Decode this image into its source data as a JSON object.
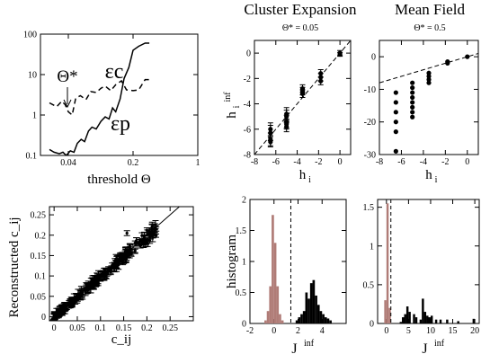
{
  "header": {
    "left_title": "Cluster Expansion",
    "left_sub": "Θ* = 0.05",
    "right_title": "Mean Field",
    "right_sub": "Θ* = 0.5"
  },
  "chart_data": [
    {
      "id": "errors_vs_threshold",
      "type": "line",
      "xlabel": "threshold Θ",
      "ylabel": "",
      "x_scale": "log",
      "y_scale": "log",
      "xlim": [
        0.02,
        1
      ],
      "ylim": [
        0.1,
        100
      ],
      "x_ticks": [
        0.04,
        0.2,
        1
      ],
      "x_tick_labels": [
        "0.04",
        "0.2",
        "1"
      ],
      "y_ticks": [
        0.1,
        1,
        10,
        100
      ],
      "y_tick_labels": [
        "0.1",
        "1",
        "10",
        "100"
      ],
      "annotations": [
        "Θ*",
        "εc",
        "εp"
      ],
      "series": [
        {
          "name": "εc",
          "style": "dashed",
          "x": [
            0.025,
            0.03,
            0.034,
            0.037,
            0.04,
            0.044,
            0.048,
            0.054,
            0.062,
            0.07,
            0.08,
            0.09,
            0.1,
            0.115,
            0.13,
            0.15,
            0.17,
            0.2,
            0.23,
            0.27,
            0.3
          ],
          "y": [
            2.0,
            1.6,
            2.2,
            1.8,
            1.2,
            1.0,
            2.6,
            3.0,
            2.4,
            3.8,
            3.6,
            4.6,
            5.2,
            4.0,
            5.6,
            7.0,
            4.2,
            4.0,
            4.2,
            7.5,
            7.5
          ]
        },
        {
          "name": "εp",
          "style": "solid",
          "x": [
            0.025,
            0.028,
            0.032,
            0.035,
            0.038,
            0.042,
            0.046,
            0.05,
            0.055,
            0.06,
            0.066,
            0.072,
            0.08,
            0.09,
            0.1,
            0.11,
            0.12,
            0.13,
            0.145,
            0.16,
            0.18,
            0.2,
            0.23,
            0.27,
            0.3
          ],
          "y": [
            0.14,
            0.12,
            0.11,
            0.12,
            0.1,
            0.13,
            0.12,
            0.2,
            0.25,
            0.22,
            0.4,
            0.5,
            0.45,
            0.7,
            0.9,
            0.8,
            1.5,
            1.2,
            2.5,
            8.0,
            15.0,
            40.0,
            50.0,
            60.0,
            60.0
          ]
        }
      ]
    },
    {
      "id": "reconstructed_correlations",
      "type": "scatter",
      "xlabel": "c_ij",
      "ylabel": "Reconstructed c_ij",
      "xlim": [
        -0.01,
        0.3
      ],
      "ylim": [
        -0.01,
        0.27
      ],
      "x_ticks": [
        0,
        0.05,
        0.1,
        0.15,
        0.2,
        0.25
      ],
      "x_tick_labels": [
        "0",
        "0.05",
        "0.1",
        "0.15",
        "0.2",
        "0.25"
      ],
      "y_ticks": [
        0,
        0.05,
        0.1,
        0.15,
        0.2,
        0.25
      ],
      "y_tick_labels": [
        "0",
        "0.05",
        "0.1",
        "0.15",
        "0.2",
        "0.25"
      ],
      "reference_line": "y = x",
      "cloud": {
        "x_range": [
          0.0,
          0.22
        ],
        "count": 260,
        "slope": 0.98,
        "spread": 0.012,
        "error_bar": 0.008
      },
      "extra_points": [
        {
          "x": 0.157,
          "y": 0.205,
          "err": 0.006
        },
        {
          "x": 0.2,
          "y": 0.212,
          "err": 0.006
        },
        {
          "x": 0.22,
          "y": 0.215,
          "err": 0.005
        }
      ]
    },
    {
      "id": "cluster_fields",
      "type": "scatter",
      "xlabel": "h_i",
      "ylabel": "h_i^inf",
      "xlim": [
        -8,
        1
      ],
      "ylim": [
        -8,
        1
      ],
      "x_ticks": [
        -8,
        -6,
        -4,
        -2,
        0
      ],
      "x_tick_labels": [
        "-8",
        "-6",
        "-4",
        "-2",
        "0"
      ],
      "y_ticks": [
        -8,
        -6,
        -4,
        -2,
        0
      ],
      "y_tick_labels": [
        "-8",
        "-6",
        "-4",
        "-2",
        "0"
      ],
      "reference_line": "y = x",
      "points": [
        {
          "x": -6.5,
          "y": -6.3,
          "err": 0.6
        },
        {
          "x": -6.5,
          "y": -6.8,
          "err": 0.5
        },
        {
          "x": -6.5,
          "y": -7.0,
          "err": 0.4
        },
        {
          "x": -6.5,
          "y": -6.0,
          "err": 0.5
        },
        {
          "x": -5.0,
          "y": -5.0,
          "err": 0.5
        },
        {
          "x": -5.0,
          "y": -5.4,
          "err": 0.5
        },
        {
          "x": -5.0,
          "y": -5.8,
          "err": 0.4
        },
        {
          "x": -5.0,
          "y": -4.8,
          "err": 0.5
        },
        {
          "x": -5.0,
          "y": -5.6,
          "err": 0.4
        },
        {
          "x": -3.5,
          "y": -2.8,
          "err": 0.3
        },
        {
          "x": -3.5,
          "y": -3.2,
          "err": 0.3
        },
        {
          "x": -3.5,
          "y": -3.0,
          "err": 0.3
        },
        {
          "x": -1.8,
          "y": -1.6,
          "err": 0.3
        },
        {
          "x": -1.8,
          "y": -1.9,
          "err": 0.3
        },
        {
          "x": -1.8,
          "y": -2.2,
          "err": 0.3
        },
        {
          "x": 0.0,
          "y": 0.0,
          "err": 0.2
        },
        {
          "x": 0.0,
          "y": -0.1,
          "err": 0.15
        }
      ]
    },
    {
      "id": "meanfield_fields",
      "type": "scatter",
      "xlabel": "h_i",
      "ylabel": "",
      "xlim": [
        -8,
        1
      ],
      "ylim": [
        -30,
        5
      ],
      "x_ticks": [
        -8,
        -6,
        -4,
        -2,
        0
      ],
      "x_tick_labels": [
        "-8",
        "-6",
        "-4",
        "-2",
        "0"
      ],
      "y_ticks": [
        -30,
        -20,
        -10,
        0
      ],
      "y_tick_labels": [
        "-30",
        "-20",
        "-10",
        "0"
      ],
      "reference_line": "y = x",
      "points": [
        {
          "x": -6.5,
          "y": -11
        },
        {
          "x": -6.5,
          "y": -14
        },
        {
          "x": -6.5,
          "y": -17
        },
        {
          "x": -6.5,
          "y": -20
        },
        {
          "x": -6.5,
          "y": -23
        },
        {
          "x": -6.5,
          "y": -29
        },
        {
          "x": -5.0,
          "y": -8
        },
        {
          "x": -5.0,
          "y": -9.5
        },
        {
          "x": -5.0,
          "y": -11
        },
        {
          "x": -5.0,
          "y": -12.5
        },
        {
          "x": -5.0,
          "y": -14
        },
        {
          "x": -5.0,
          "y": -15.5
        },
        {
          "x": -5.0,
          "y": -17
        },
        {
          "x": -5.0,
          "y": -18.5
        },
        {
          "x": -3.5,
          "y": -5
        },
        {
          "x": -3.5,
          "y": -6
        },
        {
          "x": -3.5,
          "y": -7
        },
        {
          "x": -3.5,
          "y": -8
        },
        {
          "x": -1.8,
          "y": -1.5
        },
        {
          "x": -1.8,
          "y": -2.0
        },
        {
          "x": 0.0,
          "y": 0.0
        }
      ]
    },
    {
      "id": "cluster_histogram",
      "type": "bar",
      "xlabel": "J^inf",
      "ylabel": "histogram",
      "xlim": [
        -2,
        6
      ],
      "ylim": [
        0,
        2
      ],
      "x_ticks": [
        -2,
        0,
        2,
        4,
        6
      ],
      "x_tick_labels": [
        "-2",
        "0",
        "2",
        "4",
        ""
      ],
      "y_ticks": [
        0,
        0.5,
        1,
        1.5,
        2
      ],
      "y_tick_labels": [
        "0",
        "0.5",
        "1",
        "1.5",
        "2"
      ],
      "threshold_x": 1.4,
      "bin_width": 0.2,
      "series": [
        {
          "name": "",
          "color": "#b07c77",
          "x": [
            -0.8,
            -0.6,
            -0.4,
            -0.2,
            0.0,
            0.2,
            0.4,
            0.6
          ],
          "values": [
            0.05,
            0.2,
            0.6,
            1.75,
            1.3,
            0.6,
            0.15,
            0.05
          ]
        },
        {
          "name": "",
          "color": "#000000",
          "x": [
            1.8,
            2.0,
            2.2,
            2.4,
            2.6,
            2.8,
            3.0,
            3.2,
            3.4,
            3.6,
            3.8,
            4.0,
            4.2,
            4.4,
            4.6
          ],
          "values": [
            0.05,
            0.1,
            0.15,
            0.2,
            0.5,
            0.4,
            0.65,
            0.7,
            0.45,
            0.3,
            0.2,
            0.15,
            0.1,
            0.08,
            0.05
          ]
        }
      ]
    },
    {
      "id": "meanfield_histogram",
      "type": "bar",
      "xlabel": "J^inf",
      "ylabel": "",
      "xlim": [
        -2,
        21
      ],
      "ylim": [
        0,
        1.6
      ],
      "x_ticks": [
        0,
        5,
        10,
        15,
        20
      ],
      "x_tick_labels": [
        "0",
        "5",
        "10",
        "15",
        "20"
      ],
      "y_ticks": [
        0,
        0.5,
        1,
        1.5
      ],
      "y_tick_labels": [
        "0",
        "0.5",
        "1",
        "1.5"
      ],
      "threshold_x": 1.0,
      "bin_width": 0.5,
      "series": [
        {
          "name": "",
          "color": "#b07c77",
          "x": [
            -0.5,
            0.0,
            0.5
          ],
          "values": [
            0.3,
            1.55,
            0.2
          ]
        },
        {
          "name": "",
          "color": "#000000",
          "x": [
            3.0,
            3.5,
            4.0,
            4.5,
            5.0,
            6.0,
            6.5,
            7.5,
            8.0,
            8.5,
            9.0,
            9.5,
            10.0,
            11.0,
            12.0,
            13.5,
            16.0,
            19.5
          ],
          "values": [
            0.02,
            0.08,
            0.12,
            0.22,
            0.15,
            0.12,
            0.08,
            0.05,
            0.32,
            0.15,
            0.1,
            0.08,
            0.1,
            0.05,
            0.05,
            0.05,
            0.03,
            0.06
          ]
        }
      ]
    }
  ]
}
